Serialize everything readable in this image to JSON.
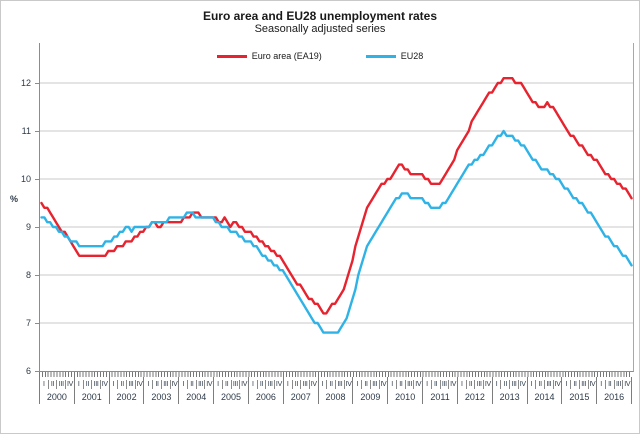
{
  "header": {
    "title": "Euro area and EU28 unemployment rates",
    "subtitle": "Seasonally adjusted series"
  },
  "legend": [
    {
      "label": "Euro area (EA19)",
      "color": "#e6232e"
    },
    {
      "label": "EU28",
      "color": "#2fb3e6"
    }
  ],
  "chart_data": {
    "type": "line",
    "title": "Euro area and EU28 unemployment rates",
    "subtitle": "Seasonally adjusted series",
    "ylabel": "%",
    "ylim": [
      6,
      12.83
    ],
    "yticks": [
      6,
      7,
      8,
      9,
      10,
      11,
      12
    ],
    "grid": "horizontal",
    "legend_position": "top-center",
    "x_unit": "month",
    "x_start": "2000-01",
    "x_end": "2016-12",
    "years": [
      2000,
      2001,
      2002,
      2003,
      2004,
      2005,
      2006,
      2007,
      2008,
      2009,
      2010,
      2011,
      2012,
      2013,
      2014,
      2015,
      2016
    ],
    "quarter_labels": [
      "I",
      "II",
      "III",
      "IV"
    ],
    "series": [
      {
        "name": "Euro area (EA19)",
        "color": "#e6232e",
        "values": [
          9.5,
          9.4,
          9.4,
          9.3,
          9.2,
          9.1,
          9.0,
          8.9,
          8.9,
          8.8,
          8.7,
          8.6,
          8.5,
          8.4,
          8.4,
          8.4,
          8.4,
          8.4,
          8.4,
          8.4,
          8.4,
          8.4,
          8.4,
          8.5,
          8.5,
          8.5,
          8.6,
          8.6,
          8.6,
          8.7,
          8.7,
          8.7,
          8.8,
          8.8,
          8.9,
          8.9,
          9.0,
          9.0,
          9.1,
          9.1,
          9.0,
          9.0,
          9.1,
          9.1,
          9.1,
          9.1,
          9.1,
          9.1,
          9.1,
          9.2,
          9.2,
          9.2,
          9.3,
          9.3,
          9.3,
          9.2,
          9.2,
          9.2,
          9.2,
          9.2,
          9.2,
          9.1,
          9.1,
          9.2,
          9.1,
          9.0,
          9.1,
          9.1,
          9.0,
          9.0,
          8.9,
          8.9,
          8.9,
          8.8,
          8.8,
          8.7,
          8.7,
          8.6,
          8.6,
          8.5,
          8.5,
          8.4,
          8.4,
          8.3,
          8.2,
          8.1,
          8.0,
          7.9,
          7.8,
          7.8,
          7.7,
          7.6,
          7.5,
          7.5,
          7.4,
          7.4,
          7.3,
          7.2,
          7.2,
          7.3,
          7.4,
          7.4,
          7.5,
          7.6,
          7.7,
          7.9,
          8.1,
          8.3,
          8.6,
          8.8,
          9.0,
          9.2,
          9.4,
          9.5,
          9.6,
          9.7,
          9.8,
          9.9,
          9.9,
          10.0,
          10.0,
          10.1,
          10.2,
          10.3,
          10.3,
          10.2,
          10.2,
          10.1,
          10.1,
          10.1,
          10.1,
          10.1,
          10.0,
          10.0,
          9.9,
          9.9,
          9.9,
          9.9,
          10.0,
          10.1,
          10.2,
          10.3,
          10.4,
          10.6,
          10.7,
          10.8,
          10.9,
          11.0,
          11.2,
          11.3,
          11.4,
          11.5,
          11.6,
          11.7,
          11.8,
          11.8,
          11.9,
          12.0,
          12.0,
          12.1,
          12.1,
          12.1,
          12.1,
          12.0,
          12.0,
          12.0,
          11.9,
          11.8,
          11.7,
          11.6,
          11.6,
          11.5,
          11.5,
          11.5,
          11.6,
          11.5,
          11.5,
          11.4,
          11.3,
          11.2,
          11.1,
          11.0,
          10.9,
          10.9,
          10.8,
          10.7,
          10.7,
          10.6,
          10.5,
          10.5,
          10.4,
          10.4,
          10.3,
          10.2,
          10.1,
          10.1,
          10.0,
          10.0,
          9.9,
          9.9,
          9.8,
          9.8,
          9.7,
          9.6
        ]
      },
      {
        "name": "EU28",
        "color": "#2fb3e6",
        "values": [
          9.2,
          9.2,
          9.1,
          9.1,
          9.0,
          9.0,
          8.9,
          8.9,
          8.8,
          8.8,
          8.7,
          8.7,
          8.7,
          8.6,
          8.6,
          8.6,
          8.6,
          8.6,
          8.6,
          8.6,
          8.6,
          8.6,
          8.7,
          8.7,
          8.7,
          8.8,
          8.8,
          8.9,
          8.9,
          9.0,
          9.0,
          8.9,
          9.0,
          9.0,
          9.0,
          9.0,
          9.0,
          9.0,
          9.1,
          9.1,
          9.1,
          9.1,
          9.1,
          9.1,
          9.2,
          9.2,
          9.2,
          9.2,
          9.2,
          9.2,
          9.3,
          9.3,
          9.3,
          9.2,
          9.2,
          9.2,
          9.2,
          9.2,
          9.2,
          9.2,
          9.1,
          9.1,
          9.0,
          9.0,
          9.0,
          8.9,
          8.9,
          8.9,
          8.8,
          8.8,
          8.7,
          8.7,
          8.7,
          8.6,
          8.6,
          8.5,
          8.4,
          8.4,
          8.3,
          8.3,
          8.2,
          8.2,
          8.1,
          8.1,
          8.0,
          7.9,
          7.8,
          7.7,
          7.6,
          7.5,
          7.4,
          7.3,
          7.2,
          7.1,
          7.0,
          7.0,
          6.9,
          6.8,
          6.8,
          6.8,
          6.8,
          6.8,
          6.8,
          6.9,
          7.0,
          7.1,
          7.3,
          7.5,
          7.7,
          8.0,
          8.2,
          8.4,
          8.6,
          8.7,
          8.8,
          8.9,
          9.0,
          9.1,
          9.2,
          9.3,
          9.4,
          9.5,
          9.6,
          9.6,
          9.7,
          9.7,
          9.7,
          9.6,
          9.6,
          9.6,
          9.6,
          9.6,
          9.5,
          9.5,
          9.4,
          9.4,
          9.4,
          9.4,
          9.5,
          9.5,
          9.6,
          9.7,
          9.8,
          9.9,
          10.0,
          10.1,
          10.2,
          10.3,
          10.3,
          10.4,
          10.4,
          10.5,
          10.5,
          10.6,
          10.7,
          10.7,
          10.8,
          10.9,
          10.9,
          11.0,
          10.9,
          10.9,
          10.9,
          10.8,
          10.8,
          10.7,
          10.7,
          10.6,
          10.5,
          10.4,
          10.4,
          10.3,
          10.2,
          10.2,
          10.2,
          10.1,
          10.1,
          10.0,
          10.0,
          9.9,
          9.8,
          9.8,
          9.7,
          9.6,
          9.6,
          9.5,
          9.5,
          9.4,
          9.3,
          9.3,
          9.2,
          9.1,
          9.0,
          8.9,
          8.8,
          8.8,
          8.7,
          8.6,
          8.6,
          8.5,
          8.4,
          8.4,
          8.3,
          8.2
        ]
      }
    ]
  }
}
